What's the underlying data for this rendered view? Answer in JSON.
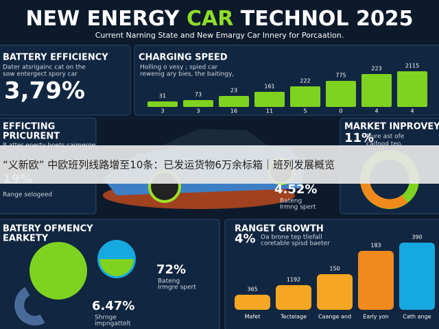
{
  "header": {
    "title_start": "NEW ENERGY ",
    "title_mid": "CAR",
    "title_end": " TECHNOL 2025",
    "subtitle": "Current Narning State and New Emargy Car Innery for Porcaation."
  },
  "battery": {
    "title": "BATTERY EFFICIENCY",
    "lines": [
      "Dater atsrigainc cat on the",
      "sow entergect spory car"
    ],
    "value": "3,79%"
  },
  "charging": {
    "title": "CHARGING SPEED",
    "lines": [
      "Holling o vesy ; spied car",
      "rewenig ary bies, the baitingy,"
    ],
    "top_labels": [
      "31",
      "73",
      "23",
      "161",
      "222",
      "775",
      "223",
      "2115"
    ],
    "bottom_labels": [
      "3",
      "3",
      "16",
      "11",
      "5",
      "0",
      "4",
      "4"
    ]
  },
  "efficiency": {
    "title": [
      "EFFICTING",
      "PRICURENT"
    ],
    "lines": [
      "8 atter enerty boets caimerge"
    ],
    "value": "19%",
    "note": "Range selogeed"
  },
  "market": {
    "title": "MARKET INPROVEY",
    "value": "11%",
    "lines": [
      "Dure ast ofe",
      "caifood tep."
    ]
  },
  "center": {
    "value": "4.52%",
    "lines": [
      "Bateng",
      "Irmng spert"
    ]
  },
  "banner": {
    "text": "“义新欧” 中欧班列线路增至10条：已发运货物6万余标箱｜班列发展概览"
  },
  "safety": {
    "title": [
      "BATERY OFMENCY",
      "EARKETY"
    ],
    "value1": "72%",
    "lines1": [
      "Bateng",
      "Irmgre spert"
    ],
    "value2": "6.47%",
    "lines2": [
      "Shrnge",
      "impngattelt"
    ]
  },
  "range": {
    "title": "RANGET GROWTH",
    "value": "4%",
    "lines": [
      "Oa brone tep tliefall",
      "coretable spisd baeter"
    ],
    "top_labels": [
      "365",
      "1192",
      "150",
      "183",
      "390"
    ],
    "categories": [
      "Mafet",
      "Tectelage",
      "Caange and",
      "Early yon",
      "Cath ange"
    ]
  }
}
